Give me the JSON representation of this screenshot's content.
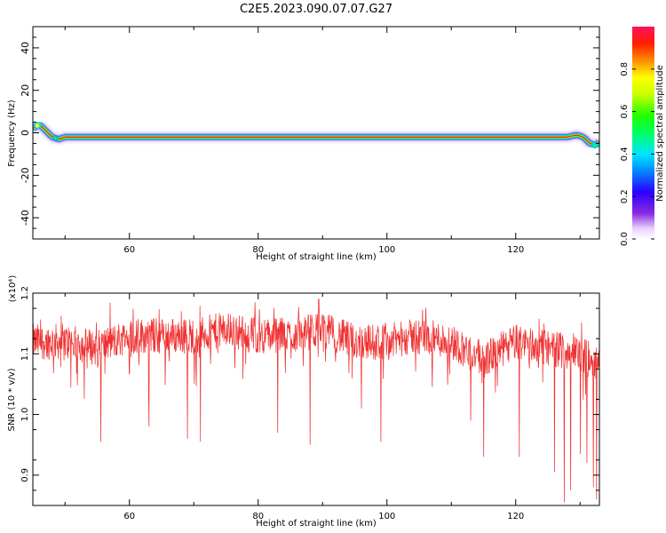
{
  "title": "C2E5.2023.090.07.07.G27",
  "colors": {
    "snr_line": "#f03232",
    "axis": "#000000"
  },
  "chart_data": [
    {
      "type": "heatmap",
      "xlabel": "Height of straight line (km)",
      "ylabel": "Frequency (Hz)",
      "xlim": [
        45,
        133
      ],
      "ylim": [
        -50,
        50
      ],
      "xticks": [
        60,
        80,
        100,
        120
      ],
      "yticks": [
        -40,
        -20,
        0,
        20,
        40
      ],
      "ridge": {
        "x": [
          45,
          46,
          47,
          48,
          49,
          50,
          52,
          55,
          60,
          70,
          80,
          90,
          95,
          100,
          110,
          120,
          128,
          129.5,
          130.5,
          131.5,
          132.5,
          133
        ],
        "y": [
          2,
          4,
          1,
          -2,
          -3,
          -2,
          -2,
          -2,
          -2,
          -2,
          -2,
          -2,
          -2,
          -2,
          -2,
          -2,
          -2,
          -1,
          -2,
          -5,
          -6,
          -4
        ]
      },
      "colorbar": {
        "label": "Normalized spectral amplitude",
        "ticks": [
          "0.0",
          "0.2",
          "0.4",
          "0.6",
          "0.8"
        ],
        "range": [
          0,
          1
        ]
      }
    },
    {
      "type": "line",
      "xlabel": "Height of straight line (km)",
      "ylabel": "SNR (10 * v/v)",
      "multiplier": "(x10⁴)",
      "xlim": [
        45,
        133
      ],
      "ylim": [
        0.85,
        1.2
      ],
      "xticks": [
        60,
        80,
        100,
        120
      ],
      "yticks": [
        "0.9",
        "1.0",
        "1.1",
        "1.2"
      ],
      "baseline": {
        "x": [
          45,
          50,
          55,
          60,
          65,
          70,
          75,
          80,
          85,
          90,
          95,
          100,
          105,
          110,
          115,
          120,
          125,
          130,
          133
        ],
        "y": [
          1.12,
          1.12,
          1.11,
          1.13,
          1.13,
          1.13,
          1.14,
          1.13,
          1.13,
          1.14,
          1.12,
          1.12,
          1.13,
          1.12,
          1.09,
          1.12,
          1.11,
          1.1,
          1.08
        ]
      },
      "noise_amplitude": 0.03,
      "dips": {
        "x": [
          55.5,
          63,
          69,
          71,
          83,
          88,
          96,
          99,
          113,
          115,
          120.5,
          126,
          127.5,
          128.5,
          130,
          131,
          132,
          132.5
        ],
        "y": [
          0.955,
          0.98,
          0.96,
          0.955,
          0.97,
          0.95,
          1.01,
          0.955,
          0.99,
          0.93,
          0.93,
          0.905,
          0.855,
          0.875,
          0.935,
          0.92,
          0.88,
          0.86
        ]
      }
    }
  ]
}
